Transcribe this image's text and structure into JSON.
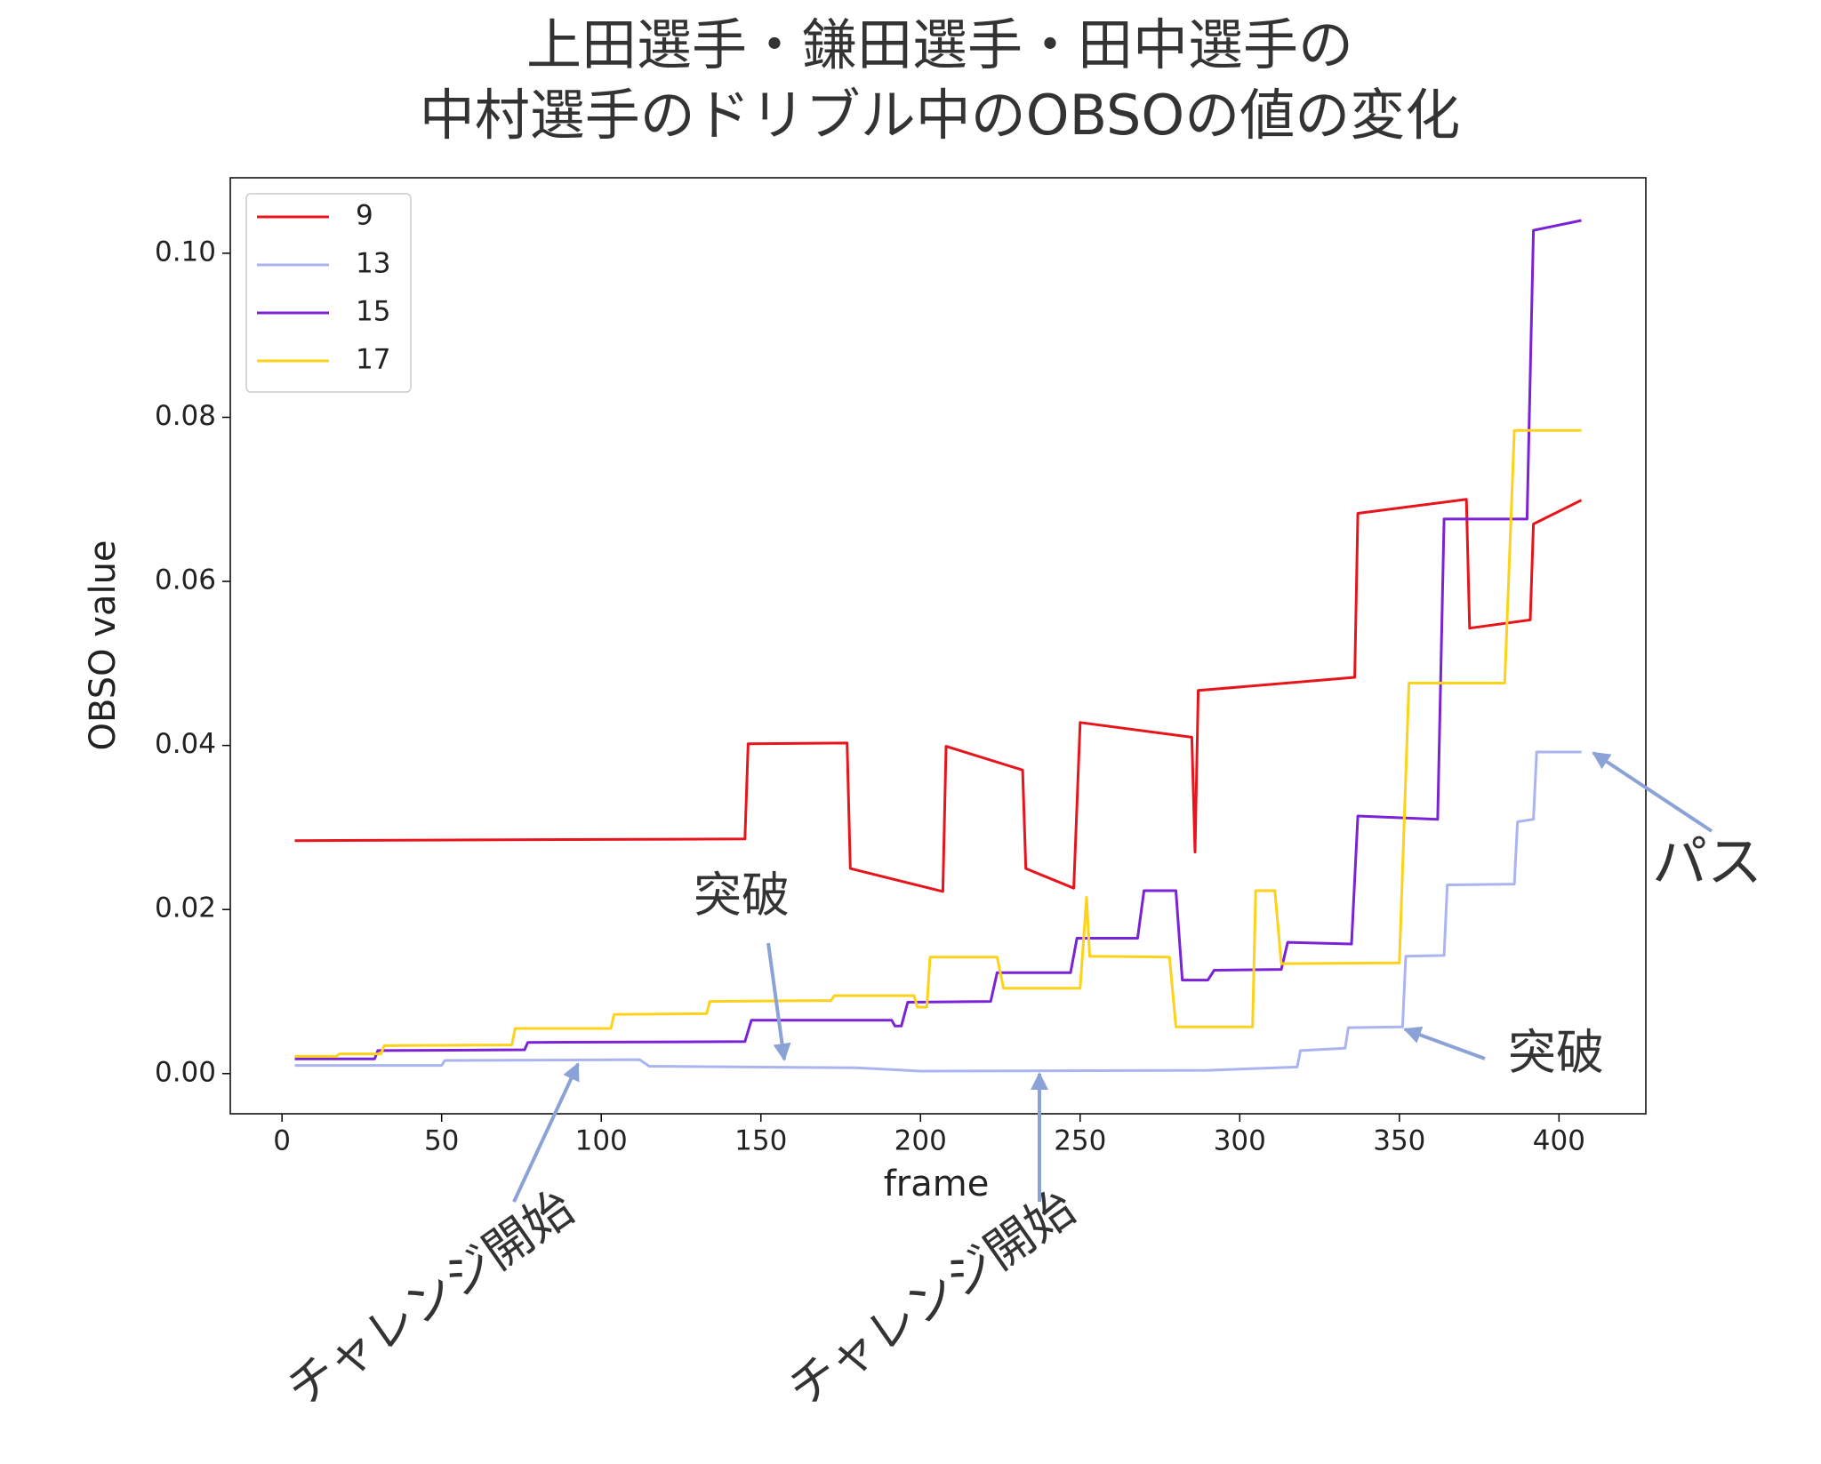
{
  "chart_data": {
    "type": "line",
    "title": [
      "上田選手・鎌田選手・田中選手の",
      "中村選手のドリブル中のOBSOの値の変化"
    ],
    "xlabel": "frame",
    "ylabel": "OBSO value",
    "xlim": [
      -16.2,
      427.2
    ],
    "ylim": [
      -0.0049,
      0.1092
    ],
    "xticks": [
      0,
      50,
      100,
      150,
      200,
      250,
      300,
      350,
      400
    ],
    "yticks": [
      {
        "value": 0,
        "label": "0.00"
      },
      0.02,
      0.04,
      0.06,
      0.08,
      {
        "value": 0.1,
        "label": "0.10"
      }
    ],
    "legend": "upper left",
    "series": [
      {
        "name": "9",
        "color": "#e8141c",
        "x": [
          4,
          145,
          146,
          177,
          178,
          207,
          208,
          232,
          233,
          248,
          250,
          285,
          286,
          287,
          336,
          337,
          371,
          372,
          391,
          392,
          407
        ],
        "values": [
          0.0284,
          0.0286,
          0.0402,
          0.0403,
          0.025,
          0.0222,
          0.0399,
          0.037,
          0.025,
          0.0226,
          0.0428,
          0.041,
          0.027,
          0.0467,
          0.0483,
          0.0683,
          0.07,
          0.0543,
          0.0553,
          0.067,
          0.0699
        ]
      },
      {
        "name": "13",
        "color": "#aab4f0",
        "x": [
          4,
          50,
          51,
          112,
          115,
          180,
          200,
          290,
          318,
          319,
          333,
          334,
          351,
          352,
          364,
          365,
          386,
          387,
          392,
          393,
          407
        ],
        "values": [
          0.001,
          0.001,
          0.0016,
          0.0017,
          0.0009,
          0.0007,
          0.0003,
          0.0004,
          0.0008,
          0.0028,
          0.0031,
          0.0056,
          0.0057,
          0.0143,
          0.0144,
          0.023,
          0.0231,
          0.0307,
          0.031,
          0.0392,
          0.0392
        ]
      },
      {
        "name": "15",
        "color": "#7b22d6",
        "x": [
          4,
          29,
          30,
          76,
          77,
          145,
          147,
          191,
          192,
          194,
          196,
          222,
          224,
          247,
          249,
          268,
          270,
          280,
          282,
          290,
          292,
          313,
          315,
          335,
          337,
          362,
          364,
          390,
          392,
          407
        ],
        "values": [
          0.0018,
          0.0018,
          0.0028,
          0.0029,
          0.0038,
          0.0039,
          0.0065,
          0.0065,
          0.0058,
          0.0058,
          0.0087,
          0.0088,
          0.0123,
          0.0123,
          0.0165,
          0.0165,
          0.0223,
          0.0223,
          0.0114,
          0.0114,
          0.0126,
          0.0127,
          0.016,
          0.0158,
          0.0314,
          0.031,
          0.0676,
          0.0676,
          0.1028,
          0.104
        ]
      },
      {
        "name": "17",
        "color": "#ffd21a",
        "x": [
          4,
          17,
          18,
          31,
          32,
          72,
          73,
          103,
          104,
          133,
          134,
          172,
          173,
          198,
          199,
          202,
          203,
          224,
          226,
          250,
          252,
          253,
          278,
          280,
          304,
          305,
          311,
          313,
          350,
          353,
          383,
          386,
          407
        ],
        "values": [
          0.0021,
          0.0021,
          0.0024,
          0.0024,
          0.0034,
          0.0035,
          0.0055,
          0.0055,
          0.0072,
          0.0073,
          0.0088,
          0.0089,
          0.0095,
          0.0095,
          0.0081,
          0.0081,
          0.0142,
          0.0142,
          0.0104,
          0.0104,
          0.0215,
          0.0143,
          0.0142,
          0.0057,
          0.0057,
          0.0223,
          0.0223,
          0.0134,
          0.0135,
          0.0476,
          0.0476,
          0.0784,
          0.0784
        ]
      }
    ],
    "annotations": [
      "突破",
      "突破",
      "パス",
      "チャレンジ開始",
      "チャレンジ開始"
    ]
  }
}
